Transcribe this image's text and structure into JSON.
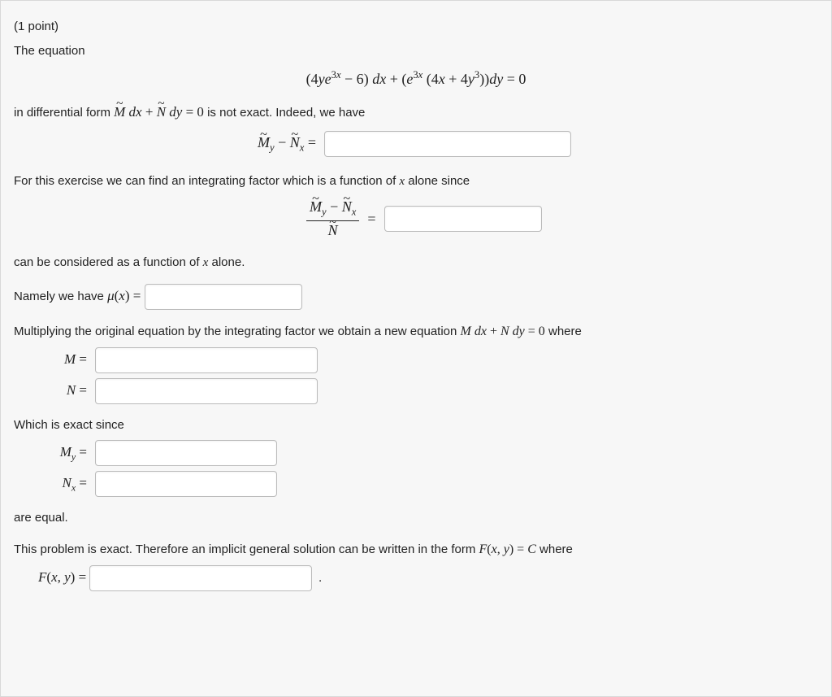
{
  "header": {
    "points": "(1 point)",
    "intro": "The equation"
  },
  "eq_main": "(4𝑦𝑒^{3𝑥} − 6) 𝑑𝑥 + (𝑒^{3𝑥}(4𝑥 + 4𝑦³)) 𝑑𝑦 = 0",
  "text": {
    "diff_form_pre": "in differential form ",
    "diff_form_post": " is not exact. Indeed, we have",
    "integrating_factor_intro": "For this exercise we can find an integrating factor which is a function of ",
    "x_alone": " alone since",
    "considered": "can be considered as a function of ",
    "x_alone2": " alone.",
    "namely": "Namely we have ",
    "mu_eq": "μ(x) =",
    "multiplying": "Multiplying the original equation by the integrating factor we obtain a new equation ",
    "mdx_ndy": "M dx + N dy = 0",
    "where": " where",
    "exact_since": "Which is exact since",
    "are_equal": "are equal.",
    "implicit": "This problem is exact. Therefore an implicit general solution can be written in the form ",
    "fxy_c": "F(x, y) = C",
    "where2": " where"
  },
  "labels": {
    "My_minus_Nx": "M̃_y − Ñ_x =",
    "frac_label": "(M̃_y − Ñ_x)/Ñ =",
    "M_eq": "M =",
    "N_eq": "N =",
    "My_eq": "M_y =",
    "Nx_eq": "N_x =",
    "Fxy_eq": "F(x, y) ="
  },
  "style": {
    "bg": "#f7f7f7",
    "border": "#d9d9d9",
    "input_border": "#bbbbbb",
    "text_color": "#222222",
    "font_body": "Arial",
    "font_math": "Times New Roman"
  }
}
